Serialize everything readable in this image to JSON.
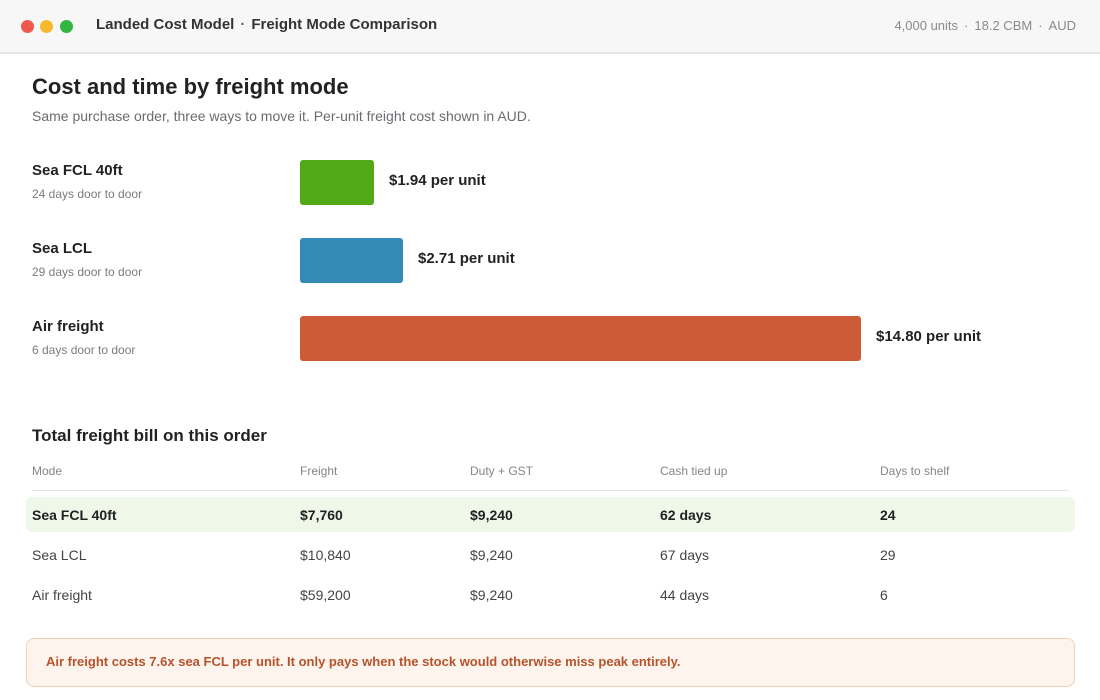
{
  "window": {
    "title": "Landed Cost Model",
    "separator": "·",
    "subtitle": "Freight Mode Comparison",
    "meta": [
      "4,000 units",
      "18.2 CBM",
      "AUD"
    ],
    "meta_separator": "·"
  },
  "heading": "Cost and time by freight mode",
  "subheading": "Same purchase order, three ways to move it. Per-unit freight cost shown in AUD.",
  "chart_data": {
    "type": "bar",
    "orientation": "horizontal",
    "categories": [
      "Sea FCL 40ft",
      "Sea LCL",
      "Air freight"
    ],
    "category_notes": [
      "24 days door to door",
      "29 days door to door",
      "6 days door to door"
    ],
    "values": [
      1.94,
      2.71,
      14.8
    ],
    "value_labels": [
      "$1.94 per unit",
      "$2.71 per unit",
      "$14.80 per unit"
    ],
    "colors": [
      "#52a916",
      "#338ab5",
      "#ce5b38"
    ],
    "title": "",
    "xlabel": "",
    "ylabel": "",
    "xlim": [
      0,
      15.3
    ]
  },
  "table": {
    "title": "Total freight bill on this order",
    "columns": [
      "Mode",
      "Freight",
      "Duty + GST",
      "Cash tied up",
      "Days to shelf"
    ],
    "rows": [
      [
        "Sea FCL 40ft",
        "$7,760",
        "$9,240",
        "62 days",
        "24"
      ],
      [
        "Sea LCL",
        "$10,840",
        "$9,240",
        "67 days",
        "29"
      ],
      [
        "Air freight",
        "$59,200",
        "$9,240",
        "44 days",
        "6"
      ]
    ],
    "highlight_color": "#eef7e8"
  },
  "note": "Air freight costs 7.6x sea FCL per unit. It only pays when the stock would otherwise miss peak entirely."
}
